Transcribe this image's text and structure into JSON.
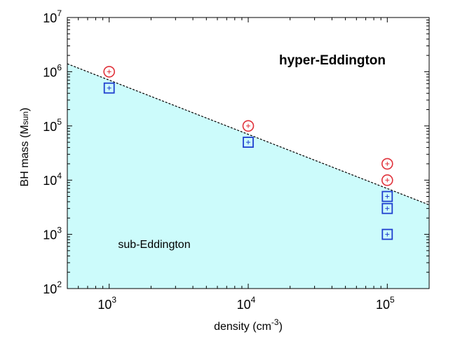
{
  "chart_data": {
    "type": "scatter",
    "x_scale": "log",
    "y_scale": "log",
    "xlim": [
      500,
      200000
    ],
    "ylim": [
      100,
      10000000
    ],
    "xlabel": {
      "text": "density (cm",
      "sup": "-3",
      "close": ")"
    },
    "ylabel": {
      "text": "BH mass (M",
      "sub": "sun",
      "close": ")"
    },
    "x_ticks": [
      {
        "base": "10",
        "exp": "3",
        "value": 1000
      },
      {
        "base": "10",
        "exp": "4",
        "value": 10000
      },
      {
        "base": "10",
        "exp": "5",
        "value": 100000
      }
    ],
    "y_ticks": [
      {
        "base": "10",
        "exp": "2",
        "value": 100
      },
      {
        "base": "10",
        "exp": "3",
        "value": 1000
      },
      {
        "base": "10",
        "exp": "4",
        "value": 10000
      },
      {
        "base": "10",
        "exp": "5",
        "value": 100000
      },
      {
        "base": "10",
        "exp": "6",
        "value": 1000000
      },
      {
        "base": "10",
        "exp": "7",
        "value": 10000000
      }
    ],
    "boundary_line": {
      "style": "dashed",
      "color": "#000000",
      "points": [
        [
          500,
          1400000
        ],
        [
          200000,
          3500
        ]
      ]
    },
    "sub_region_fill": "#ccfbfb",
    "region_labels": {
      "hyper": "hyper-Eddington",
      "sub": "sub-Eddington"
    },
    "series": [
      {
        "marker": "circle",
        "color": "#e0313a",
        "points": [
          [
            1000,
            1000000
          ],
          [
            10000,
            100000
          ],
          [
            100000,
            20000
          ],
          [
            100000,
            10000
          ]
        ]
      },
      {
        "marker": "square",
        "color": "#1f3fcf",
        "points": [
          [
            1000,
            500000
          ],
          [
            10000,
            50000
          ],
          [
            100000,
            5000
          ],
          [
            100000,
            3000
          ],
          [
            100000,
            1000
          ]
        ]
      }
    ]
  }
}
